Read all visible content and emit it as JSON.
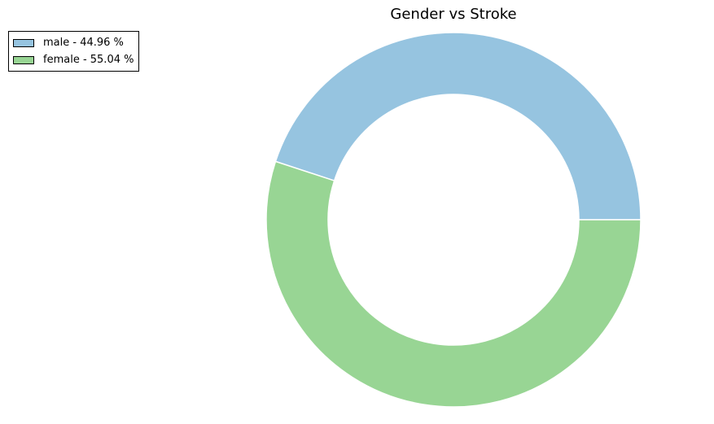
{
  "chart_data": {
    "type": "pie",
    "title": "Gender vs Stroke",
    "categories": [
      "male",
      "female"
    ],
    "values": [
      44.96,
      55.04
    ],
    "legend_labels": [
      "male - 44.96 %",
      "female - 55.04 %"
    ],
    "colors": [
      "#96c4e0",
      "#98d594"
    ],
    "donut": true,
    "legend_position": "upper-left"
  }
}
